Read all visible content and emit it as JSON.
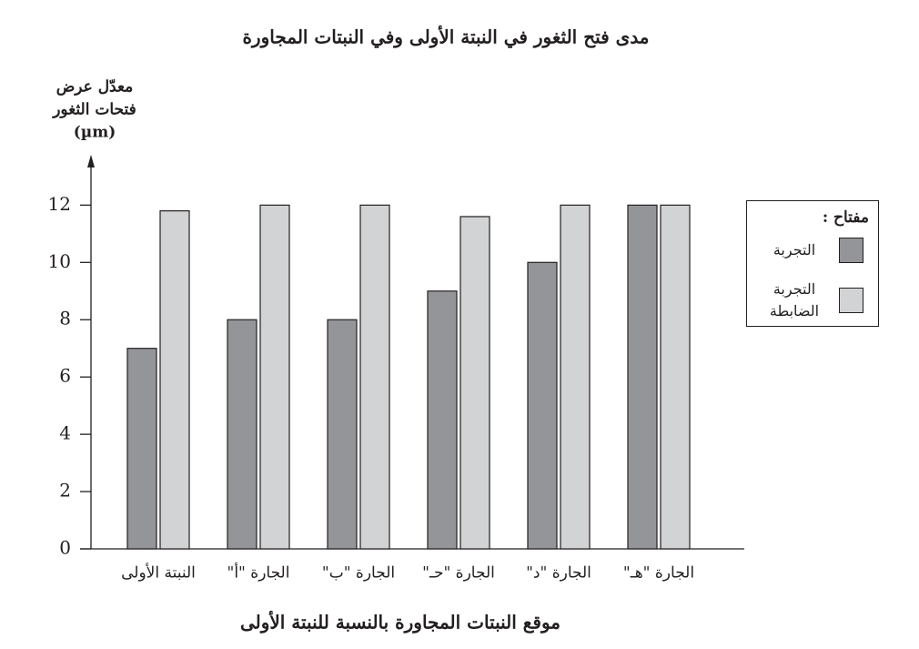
{
  "chart_data": {
    "type": "bar",
    "title": "مدى فتح الثغور في النبتة الأولى وفي النبتات المجاورة",
    "y_label": [
      "معدّل عرض",
      "فتحات الثغور",
      "(µm)"
    ],
    "x_label": "موقع النبتات المجاورة بالنسبة للنبتة الأولى",
    "categories": [
      "النبتة الأولى",
      "الجارة \"أ\"",
      "الجارة \"ب\"",
      "الجارة \"حـ\"",
      "الجارة \"د\"",
      "الجارة \"هـ\""
    ],
    "series": [
      {
        "name": "التجربة",
        "color": "#939598",
        "values": [
          7,
          8,
          8,
          9,
          10,
          12
        ]
      },
      {
        "name": "التجربة الضابطة",
        "color": "#d1d3d4",
        "values": [
          11.8,
          12,
          12,
          11.6,
          12,
          12
        ]
      }
    ],
    "legend_title": "مفتاح :",
    "legend_position": "right",
    "ylim": [
      0,
      13.6
    ],
    "yticks": [
      0,
      2,
      4,
      6,
      8,
      10,
      12
    ],
    "grid": false
  }
}
